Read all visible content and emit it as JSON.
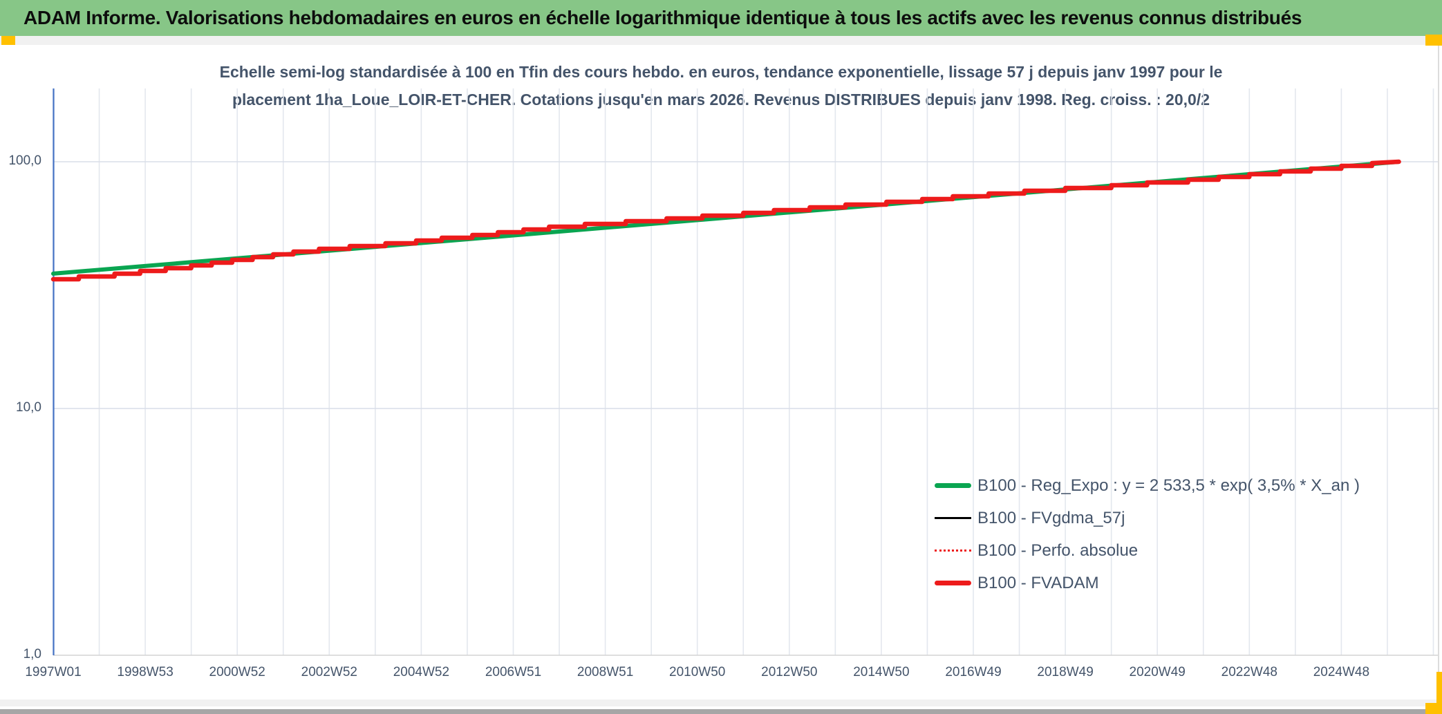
{
  "header": {
    "title": "ADAM Informe. Valorisations hebdomadaires en euros en échelle logarithmique identique à tous les actifs avec les revenus connus distribués",
    "bar_color": "#87C687",
    "accent_color": "#FFC000"
  },
  "chart_data": {
    "type": "line",
    "title": "Echelle semi-log standardisée à 100 en Tfin des cours hebdo. en euros, tendance exponentielle, lissage 57 j depuis janv 1997 pour le placement 1ha_Loue_LOIR-ET-CHER. Cotations jusqu'en mars 2026. Revenus DISTRIBUES depuis janv 1998. Reg. croiss. : 20,0/2",
    "title_lines": [
      "Echelle semi-log standardisée à 100 en Tfin des cours hebdo. en euros, tendance exponentielle, lissage 57 j depuis janv 1997 pour le",
      "placement 1ha_Loue_LOIR-ET-CHER. Cotations jusqu'en mars 2026. Revenus DISTRIBUES depuis janv 1998. Reg. croiss. : 20,0/2"
    ],
    "y_axis": {
      "scale": "log10",
      "range": [
        1,
        197
      ],
      "ticks": [
        {
          "label": "100,0",
          "value": 100
        },
        {
          "label": "10,0",
          "value": 10
        },
        {
          "label": "1,0",
          "value": 1
        }
      ],
      "axis_line_color": "#4472C4",
      "gridline_color": "#D9DEE8"
    },
    "x_axis": {
      "unit": "ISO-week",
      "range_years": [
        1997.0,
        2027.2
      ],
      "gridline_every_years": 1,
      "gridline_color": "#E3E7EE",
      "ticks": [
        {
          "label": "1997W01",
          "year": 1997
        },
        {
          "label": "1998W53",
          "year": 1999
        },
        {
          "label": "2000W52",
          "year": 2001
        },
        {
          "label": "2002W52",
          "year": 2003
        },
        {
          "label": "2004W52",
          "year": 2005
        },
        {
          "label": "2006W51",
          "year": 2007
        },
        {
          "label": "2008W51",
          "year": 2009
        },
        {
          "label": "2010W50",
          "year": 2011
        },
        {
          "label": "2012W50",
          "year": 2013
        },
        {
          "label": "2014W50",
          "year": 2015
        },
        {
          "label": "2016W49",
          "year": 2017
        },
        {
          "label": "2018W49",
          "year": 2019
        },
        {
          "label": "2020W49",
          "year": 2021
        },
        {
          "label": "2022W48",
          "year": 2023
        },
        {
          "label": "2024W48",
          "year": 2025
        }
      ]
    },
    "legend": {
      "position": "inside-bottom-right"
    },
    "series": [
      {
        "name": "B100 - Reg_Expo : y = 2 533,5 * exp( 3,5% *  X_an )",
        "color": "#0AA551",
        "style": "solid-thick",
        "interpolation": "exponential",
        "x": [
          1997.0,
          2026.25
        ],
        "values": [
          35.2,
          100.0
        ]
      },
      {
        "name": "B100 - FVgdma_57j",
        "color": "#000000",
        "style": "solid-thin",
        "coincides_with": "B100 - FVADAM"
      },
      {
        "name": "B100 - Perfo. absolue",
        "color": "#ED1B1B",
        "style": "dotted-thin",
        "coincides_with": "B100 - FVADAM"
      },
      {
        "name": "B100 - FVADAM",
        "color": "#ED1B1B",
        "style": "solid-thick",
        "interpolation": "weekly-steps",
        "x": [
          1997.0,
          1998,
          1999,
          2000,
          2001,
          2002,
          2003,
          2004,
          2005,
          2006,
          2007,
          2008,
          2009,
          2010,
          2011,
          2012,
          2013,
          2014,
          2015,
          2016,
          2017,
          2018,
          2019,
          2020,
          2021,
          2022,
          2023,
          2024,
          2025,
          2026.0,
          2026.25
        ],
        "values": [
          33.3,
          34.3,
          35.9,
          37.7,
          39.9,
          42.3,
          44.4,
          45.9,
          47.7,
          49.7,
          52.1,
          54.5,
          55.9,
          57.7,
          59.5,
          61.4,
          63.7,
          65.9,
          67.9,
          70.2,
          72.6,
          75.1,
          77.4,
          79.5,
          81.9,
          84.7,
          87.9,
          91.4,
          95.2,
          98.8,
          100.0
        ]
      }
    ]
  }
}
